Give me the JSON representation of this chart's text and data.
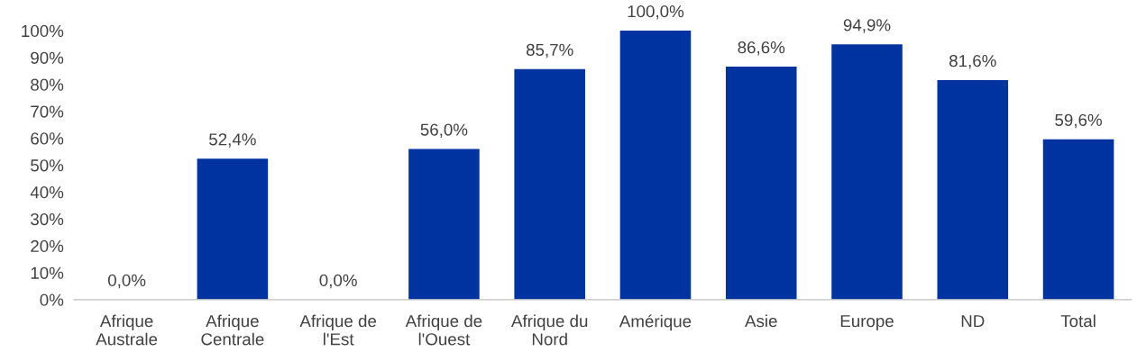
{
  "chart_data": {
    "type": "bar",
    "color": "#0033a0",
    "categories": [
      "Afrique Australe",
      "Afrique Centrale",
      "Afrique de l'Est",
      "Afrique de l'Ouest",
      "Afrique du Nord",
      "Amérique",
      "Asie",
      "Europe",
      "ND",
      "Total"
    ],
    "values": [
      0,
      52.4,
      0,
      56.0,
      85.7,
      100,
      86.6,
      94.9,
      81.6,
      59.6
    ],
    "value_labels": [
      "0,0%",
      "52,4%",
      "0,0%",
      "56,0%",
      "85,7%",
      "100,0%",
      "86,6%",
      "94,9%",
      "81,6%",
      "59,6%"
    ],
    "ylim": [
      0,
      100
    ],
    "yticks": [
      {
        "value": 0,
        "label": "0%"
      },
      {
        "value": 10,
        "label": "10%"
      },
      {
        "value": 20,
        "label": "20%"
      },
      {
        "value": 30,
        "label": "30%"
      },
      {
        "value": 40,
        "label": "40%"
      },
      {
        "value": 50,
        "label": "50%"
      },
      {
        "value": 60,
        "label": "60%"
      },
      {
        "value": 70,
        "label": "70%"
      },
      {
        "value": 80,
        "label": "80%"
      },
      {
        "value": 90,
        "label": "90%"
      },
      {
        "value": 100,
        "label": "100%"
      }
    ],
    "grid": false,
    "legend": false
  }
}
